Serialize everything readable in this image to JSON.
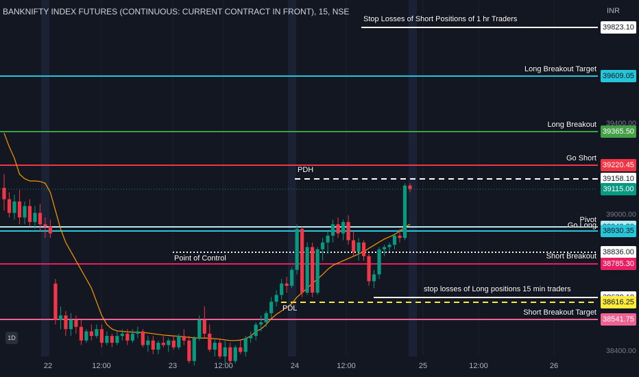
{
  "header": {
    "title": "BANKNIFTY INDEX FUTURES (CONTINUOUS: CURRENT CONTRACT IN FRONT), 15, NSE",
    "currency": "INR"
  },
  "price_axis": {
    "ticks": [
      "39400.00",
      "39000.00",
      "38400.00"
    ]
  },
  "time_axis": {
    "labels": [
      "22",
      "12:00",
      "23",
      "12:00",
      "24",
      "12:00",
      "25",
      "12:00",
      "26"
    ]
  },
  "levels": [
    {
      "id": "stop-short-1hr",
      "price": 39823.1,
      "badge": "39823.10",
      "label": "Stop Losses of Short Positions of 1 hr Traders",
      "color": "#ffffff",
      "badge_bg": "#ffffff",
      "badge_fg": "#131722"
    },
    {
      "id": "long-breakout-target",
      "price": 39609.05,
      "badge": "39609.05",
      "label": "Long Breakout Target",
      "color": "#26c6da",
      "badge_bg": "#26c6da",
      "badge_fg": "#131722"
    },
    {
      "id": "long-breakout",
      "price": 39365.5,
      "badge": "39365.50",
      "label": "Long Breakout",
      "color": "#43a047",
      "badge_bg": "#43a047",
      "badge_fg": "#ffffff"
    },
    {
      "id": "go-short",
      "price": 39220.45,
      "badge": "39220.45",
      "label": "Go Short",
      "color": "#f23645",
      "badge_bg": "#f23645",
      "badge_fg": "#ffffff"
    },
    {
      "id": "pdh",
      "price": 39158.1,
      "badge": "39158.10",
      "label": "",
      "color": "#ffffff",
      "badge_bg": "#ffffff",
      "badge_fg": "#131722"
    },
    {
      "id": "current",
      "price": 39115.0,
      "badge": "39115.00",
      "label": "",
      "color": "#089981",
      "badge_bg": "#089981",
      "badge_fg": "#ffffff"
    },
    {
      "id": "pivot",
      "price": 38949.3,
      "badge": "38949.30",
      "label": "Pivot",
      "color": "#b2ebf2",
      "badge_bg": "#b2ebf2",
      "badge_fg": "#131722"
    },
    {
      "id": "go-long",
      "price": 38930.35,
      "badge": "38930.35",
      "label": "Go Long",
      "color": "#26c6da",
      "badge_bg": "#26c6da",
      "badge_fg": "#131722"
    },
    {
      "id": "poc",
      "price": 38836.0,
      "badge": "38836.00",
      "label": "",
      "color": "#ffffff",
      "badge_bg": "#ffffff",
      "badge_fg": "#131722"
    },
    {
      "id": "short-breakout",
      "price": 38785.3,
      "badge": "38785.30",
      "label": "Short Breakout",
      "color": "#e91e63",
      "badge_bg": "#e91e63",
      "badge_fg": "#ffffff"
    },
    {
      "id": "stop-long-15min",
      "price": 38638.1,
      "badge": "38638.10",
      "label": "stop losses of  Long positions 15 min traders",
      "color": "#ffffff",
      "badge_bg": "#ffffff",
      "badge_fg": "#131722"
    },
    {
      "id": "pdl",
      "price": 38616.25,
      "badge": "38616.25",
      "label": "",
      "color": "#ffeb3b",
      "badge_bg": "#ffeb3b",
      "badge_fg": "#131722"
    },
    {
      "id": "short-breakout-target",
      "price": 38541.75,
      "badge": "38541.75",
      "label": "Short Breakout Target",
      "color": "#f06292",
      "badge_bg": "#f06292",
      "badge_fg": "#ffffff"
    }
  ],
  "annotations": {
    "pdh": "PDH",
    "pdl": "PDL",
    "poc": "Point of Control",
    "interval_badge": "1D"
  },
  "colors": {
    "up": "#089981",
    "down": "#f23645",
    "ma": "#ff9800",
    "bg": "#131722",
    "session_band": "#1c2235"
  },
  "chart_data": {
    "type": "candlestick",
    "ylim": [
      38320,
      39920
    ],
    "candles": [
      [
        39120,
        39180,
        39020,
        39070
      ],
      [
        39070,
        39100,
        38990,
        39010
      ],
      [
        39010,
        39090,
        38980,
        39060
      ],
      [
        39060,
        39110,
        38960,
        38990
      ],
      [
        38990,
        39060,
        38960,
        39040
      ],
      [
        39040,
        39070,
        38950,
        38970
      ],
      [
        38970,
        39040,
        38940,
        39010
      ],
      [
        39010,
        39050,
        38930,
        38960
      ],
      [
        38960,
        38990,
        38900,
        38950
      ],
      [
        38950,
        38980,
        38900,
        38920
      ],
      [
        38700,
        38720,
        38520,
        38540
      ],
      [
        38540,
        38600,
        38500,
        38560
      ],
      [
        38560,
        38580,
        38470,
        38500
      ],
      [
        38500,
        38570,
        38470,
        38540
      ],
      [
        38540,
        38560,
        38480,
        38510
      ],
      [
        38510,
        38540,
        38430,
        38450
      ],
      [
        38450,
        38500,
        38440,
        38490
      ],
      [
        38490,
        38520,
        38450,
        38470
      ],
      [
        38470,
        38520,
        38460,
        38500
      ],
      [
        38500,
        38520,
        38420,
        38440
      ],
      [
        38440,
        38490,
        38430,
        38470
      ],
      [
        38470,
        38480,
        38420,
        38440
      ],
      [
        38440,
        38490,
        38430,
        38470
      ],
      [
        38470,
        38500,
        38450,
        38480
      ],
      [
        38480,
        38500,
        38430,
        38450
      ],
      [
        38450,
        38500,
        38440,
        38480
      ],
      [
        38480,
        38510,
        38460,
        38490
      ],
      [
        38490,
        38500,
        38420,
        38430
      ],
      [
        38430,
        38470,
        38400,
        38450
      ],
      [
        38450,
        38470,
        38390,
        38410
      ],
      [
        38410,
        38450,
        38390,
        38440
      ],
      [
        38440,
        38470,
        38420,
        38430
      ],
      [
        38430,
        38460,
        38400,
        38450
      ],
      [
        38450,
        38470,
        38410,
        38420
      ],
      [
        38420,
        38480,
        38410,
        38470
      ],
      [
        38470,
        38500,
        38430,
        38450
      ],
      [
        38450,
        38470,
        38350,
        38360
      ],
      [
        38360,
        38470,
        38340,
        38460
      ],
      [
        38460,
        38560,
        38450,
        38540
      ],
      [
        38540,
        38600,
        38460,
        38480
      ],
      [
        38480,
        38520,
        38400,
        38410
      ],
      [
        38410,
        38460,
        38380,
        38440
      ],
      [
        38440,
        38460,
        38370,
        38380
      ],
      [
        38380,
        38450,
        38350,
        38420
      ],
      [
        38420,
        38440,
        38350,
        38360
      ],
      [
        38360,
        38430,
        38350,
        38420
      ],
      [
        38420,
        38450,
        38390,
        38400
      ],
      [
        38400,
        38470,
        38380,
        38460
      ],
      [
        38460,
        38490,
        38440,
        38470
      ],
      [
        38470,
        38530,
        38450,
        38520
      ],
      [
        38520,
        38560,
        38490,
        38530
      ],
      [
        38530,
        38580,
        38510,
        38570
      ],
      [
        38570,
        38640,
        38550,
        38620
      ],
      [
        38620,
        38670,
        38600,
        38650
      ],
      [
        38650,
        38720,
        38630,
        38700
      ],
      [
        38700,
        38730,
        38660,
        38690
      ],
      [
        38690,
        38770,
        38680,
        38760
      ],
      [
        38760,
        38960,
        38740,
        38940
      ],
      [
        38940,
        38950,
        38640,
        38660
      ],
      [
        38660,
        38880,
        38650,
        38860
      ],
      [
        38860,
        38880,
        38640,
        38660
      ],
      [
        38660,
        38860,
        38650,
        38850
      ],
      [
        38850,
        38900,
        38800,
        38880
      ],
      [
        38880,
        38930,
        38830,
        38910
      ],
      [
        38910,
        38980,
        38880,
        38960
      ],
      [
        38960,
        38990,
        38900,
        38920
      ],
      [
        38920,
        38980,
        38890,
        38970
      ],
      [
        38970,
        39000,
        38870,
        38890
      ],
      [
        38890,
        38930,
        38820,
        38840
      ],
      [
        38840,
        38900,
        38800,
        38880
      ],
      [
        38880,
        38890,
        38800,
        38820
      ],
      [
        38820,
        38830,
        38690,
        38710
      ],
      [
        38710,
        38760,
        38680,
        38740
      ],
      [
        38740,
        38860,
        38720,
        38850
      ],
      [
        38850,
        38870,
        38820,
        38860
      ],
      [
        38860,
        38880,
        38840,
        38870
      ],
      [
        38870,
        38920,
        38850,
        38910
      ],
      [
        38910,
        38940,
        38880,
        38900
      ],
      [
        38900,
        39140,
        38890,
        39130
      ],
      [
        39130,
        39140,
        39100,
        39115
      ]
    ],
    "ma": [
      39360,
      39300,
      39250,
      39180,
      39160,
      39150,
      39150,
      39148,
      39140,
      39100,
      39020,
      38940,
      38880,
      38840,
      38800,
      38760,
      38720,
      38680,
      38620,
      38560,
      38520,
      38500,
      38492,
      38490,
      38488,
      38487,
      38486,
      38485,
      38483,
      38480,
      38477,
      38474,
      38472,
      38470,
      38469,
      38466,
      38464,
      38462,
      38460,
      38461,
      38460,
      38458,
      38456,
      38453,
      38450,
      38450,
      38452,
      38458,
      38470,
      38490,
      38500,
      38520,
      38546,
      38565,
      38580,
      38594,
      38612,
      38640,
      38660,
      38680,
      38700,
      38720,
      38740,
      38762,
      38780,
      38790,
      38800,
      38810,
      38820,
      38830,
      38840,
      38855,
      38868,
      38882,
      38895,
      38905,
      38915,
      38930,
      38948,
      38960
    ]
  }
}
